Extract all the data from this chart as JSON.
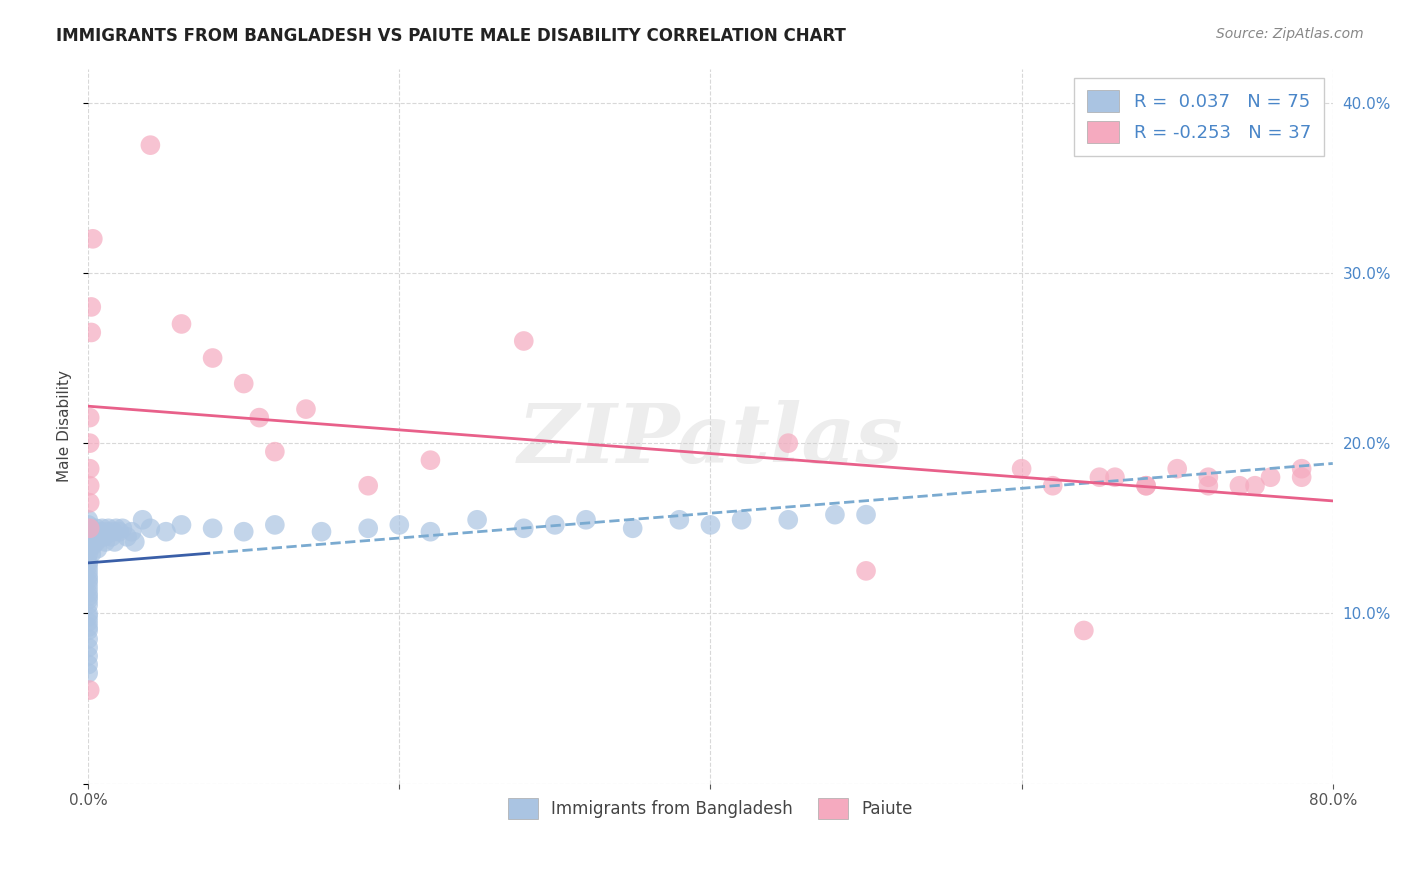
{
  "title": "IMMIGRANTS FROM BANGLADESH VS PAIUTE MALE DISABILITY CORRELATION CHART",
  "source": "Source: ZipAtlas.com",
  "ylabel": "Male Disability",
  "watermark": "ZIPatlas",
  "xlim": [
    0.0,
    0.8
  ],
  "ylim": [
    0.0,
    0.42
  ],
  "xticks": [
    0.0,
    0.2,
    0.4,
    0.6,
    0.8
  ],
  "yticks": [
    0.0,
    0.1,
    0.2,
    0.3,
    0.4
  ],
  "legend_labels": [
    "Immigrants from Bangladesh",
    "Paiute"
  ],
  "blue_R": 0.037,
  "blue_N": 75,
  "pink_R": -0.253,
  "pink_N": 37,
  "blue_color": "#aac4e2",
  "pink_color": "#f5aabf",
  "blue_line_solid_color": "#3a5fa8",
  "blue_line_dash_color": "#7aaad0",
  "pink_line_color": "#e8608a",
  "background_color": "#ffffff",
  "grid_color": "#d8d8d8",
  "blue_scatter_x": [
    0.0,
    0.0,
    0.0,
    0.0,
    0.0,
    0.0,
    0.0,
    0.0,
    0.0,
    0.0,
    0.0,
    0.0,
    0.0,
    0.0,
    0.0,
    0.0,
    0.0,
    0.0,
    0.0,
    0.0,
    0.0,
    0.0,
    0.0,
    0.0,
    0.0,
    0.0,
    0.0,
    0.0,
    0.0,
    0.0,
    0.002,
    0.003,
    0.003,
    0.004,
    0.005,
    0.005,
    0.006,
    0.007,
    0.008,
    0.009,
    0.01,
    0.011,
    0.012,
    0.013,
    0.015,
    0.016,
    0.017,
    0.018,
    0.02,
    0.022,
    0.025,
    0.028,
    0.03,
    0.035,
    0.04,
    0.05,
    0.06,
    0.08,
    0.1,
    0.12,
    0.15,
    0.18,
    0.2,
    0.22,
    0.25,
    0.28,
    0.3,
    0.32,
    0.35,
    0.38,
    0.4,
    0.42,
    0.45,
    0.48,
    0.5
  ],
  "blue_scatter_y": [
    0.13,
    0.135,
    0.138,
    0.14,
    0.142,
    0.145,
    0.148,
    0.15,
    0.152,
    0.155,
    0.118,
    0.12,
    0.122,
    0.125,
    0.128,
    0.11,
    0.112,
    0.115,
    0.105,
    0.108,
    0.1,
    0.098,
    0.095,
    0.092,
    0.09,
    0.085,
    0.08,
    0.075,
    0.07,
    0.065,
    0.135,
    0.14,
    0.145,
    0.148,
    0.15,
    0.142,
    0.138,
    0.145,
    0.148,
    0.15,
    0.145,
    0.142,
    0.148,
    0.15,
    0.145,
    0.148,
    0.142,
    0.15,
    0.148,
    0.15,
    0.145,
    0.148,
    0.142,
    0.155,
    0.15,
    0.148,
    0.152,
    0.15,
    0.148,
    0.152,
    0.148,
    0.15,
    0.152,
    0.148,
    0.155,
    0.15,
    0.152,
    0.155,
    0.15,
    0.155,
    0.152,
    0.155,
    0.155,
    0.158,
    0.158
  ],
  "pink_scatter_x": [
    0.001,
    0.001,
    0.001,
    0.001,
    0.001,
    0.001,
    0.001,
    0.002,
    0.002,
    0.003,
    0.04,
    0.06,
    0.08,
    0.1,
    0.11,
    0.12,
    0.14,
    0.18,
    0.22,
    0.28,
    0.45,
    0.5,
    0.6,
    0.62,
    0.64,
    0.66,
    0.68,
    0.7,
    0.72,
    0.74,
    0.76,
    0.78,
    0.65,
    0.68,
    0.72,
    0.75,
    0.78
  ],
  "pink_scatter_y": [
    0.215,
    0.2,
    0.185,
    0.175,
    0.165,
    0.15,
    0.055,
    0.28,
    0.265,
    0.32,
    0.375,
    0.27,
    0.25,
    0.235,
    0.215,
    0.195,
    0.22,
    0.175,
    0.19,
    0.26,
    0.2,
    0.125,
    0.185,
    0.175,
    0.09,
    0.18,
    0.175,
    0.185,
    0.175,
    0.175,
    0.18,
    0.185,
    0.18,
    0.175,
    0.18,
    0.175,
    0.18
  ]
}
